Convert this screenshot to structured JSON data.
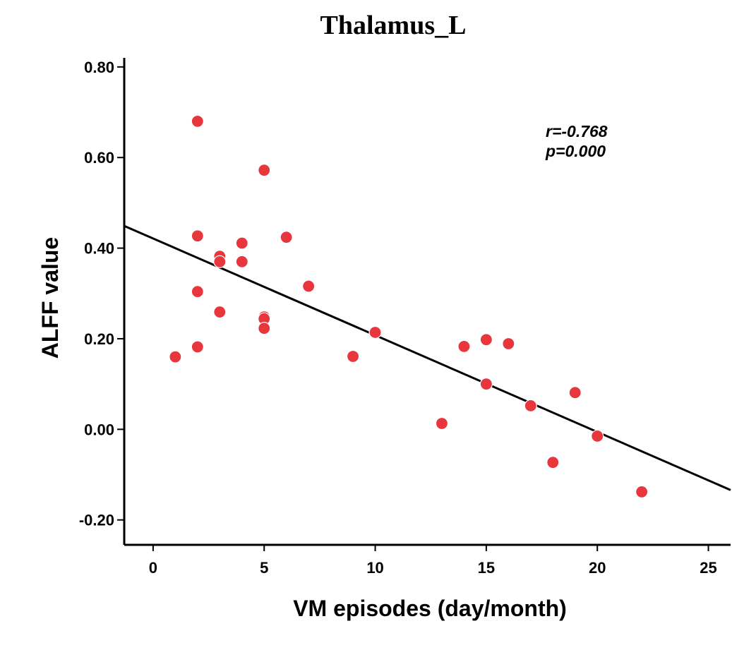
{
  "chart_data": {
    "type": "scatter",
    "title": "Thalamus_L",
    "xlabel": "VM episodes (day/month)",
    "ylabel": "ALFF value",
    "xlim": [
      -1.3,
      26
    ],
    "ylim": [
      -0.255,
      0.82
    ],
    "x_ticks": [
      0,
      5,
      10,
      15,
      20,
      25
    ],
    "x_tick_labels": [
      "0",
      "5",
      "10",
      "15",
      "20",
      "25"
    ],
    "y_ticks": [
      0.8,
      0.6,
      0.4,
      0.2,
      0.0,
      -0.2
    ],
    "y_tick_labels": [
      "0.80",
      "0.60",
      "0.40",
      "0.20",
      "0.00",
      "-0.20"
    ],
    "grid": false,
    "marker_color": "#e8363d",
    "line_color": "#000000",
    "points": [
      {
        "x": 1,
        "y": 0.16
      },
      {
        "x": 2,
        "y": 0.68
      },
      {
        "x": 2,
        "y": 0.427
      },
      {
        "x": 2,
        "y": 0.304
      },
      {
        "x": 2,
        "y": 0.182
      },
      {
        "x": 3,
        "y": 0.382
      },
      {
        "x": 3,
        "y": 0.37
      },
      {
        "x": 3,
        "y": 0.259
      },
      {
        "x": 4,
        "y": 0.411
      },
      {
        "x": 4,
        "y": 0.37
      },
      {
        "x": 5,
        "y": 0.572
      },
      {
        "x": 5,
        "y": 0.248
      },
      {
        "x": 5,
        "y": 0.244
      },
      {
        "x": 5,
        "y": 0.223
      },
      {
        "x": 6,
        "y": 0.424
      },
      {
        "x": 7,
        "y": 0.316
      },
      {
        "x": 9,
        "y": 0.161
      },
      {
        "x": 10,
        "y": 0.214
      },
      {
        "x": 13,
        "y": 0.013
      },
      {
        "x": 14,
        "y": 0.183
      },
      {
        "x": 15,
        "y": 0.198
      },
      {
        "x": 15,
        "y": 0.1
      },
      {
        "x": 16,
        "y": 0.189
      },
      {
        "x": 17,
        "y": 0.052
      },
      {
        "x": 18,
        "y": -0.073
      },
      {
        "x": 19,
        "y": 0.081
      },
      {
        "x": 20,
        "y": -0.015
      },
      {
        "x": 22,
        "y": -0.138
      }
    ],
    "fit_line": {
      "x": [
        -1.3,
        26
      ],
      "y": [
        0.449,
        -0.134
      ]
    },
    "annotations": [
      "r=-0.768",
      "p=0.000"
    ],
    "annotation_position": "top-right"
  }
}
